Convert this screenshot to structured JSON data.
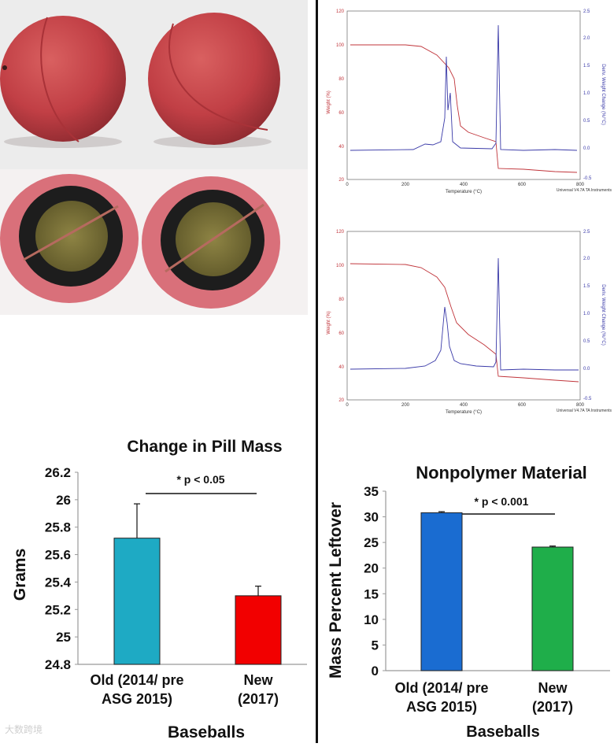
{
  "photo": {
    "caption_top": "Two red baseball pills (exterior view)",
    "caption_bottom": "Two halved baseball pills showing cork core and black rubber layer"
  },
  "tga_top": {
    "left_axis_label": "Weight (%)",
    "right_axis_label": "Deriv. Weight Change (%/°C)",
    "x_axis_label": "Temperature (°C)",
    "footer": "Universal V4.7A TA Instruments",
    "left_ticks": [
      "120",
      "100",
      "80",
      "60",
      "40",
      "20"
    ],
    "right_ticks": [
      "2.5",
      "2.0",
      "1.5",
      "1.0",
      "0.5",
      "0.0",
      "-0.5"
    ],
    "x_ticks": [
      "0",
      "200",
      "400",
      "600",
      "800"
    ]
  },
  "tga_bottom": {
    "left_axis_label": "Weight (%)",
    "right_axis_label": "Deriv. Weight Change (%/°C)",
    "x_axis_label": "Temperature (°C)",
    "footer": "Universal V4.7A TA Instruments",
    "left_ticks": [
      "120",
      "100",
      "80",
      "60",
      "40",
      "20"
    ],
    "right_ticks": [
      "2.5",
      "2.0",
      "1.5",
      "1.0",
      "0.5",
      "0.0",
      "-0.5"
    ],
    "x_ticks": [
      "0",
      "200",
      "400",
      "600",
      "800"
    ]
  },
  "chart_data": [
    {
      "type": "bar",
      "title": "Change in Pill Mass",
      "xlabel": "Baseballs",
      "ylabel": "Grams",
      "categories": [
        "Old (2014/ pre ASG 2015)",
        "New (2017)"
      ],
      "category_lines": [
        [
          "Old (2014/ pre",
          "ASG 2015)"
        ],
        [
          "New",
          "(2017)"
        ]
      ],
      "values": [
        25.72,
        25.3
      ],
      "errors": [
        0.25,
        0.07
      ],
      "colors": [
        "#1eaac4",
        "#f20000"
      ],
      "ylim": [
        24.8,
        26.2
      ],
      "yticks": [
        24.8,
        25,
        25.2,
        25.4,
        25.6,
        25.8,
        26,
        26.2
      ],
      "ytick_labels": [
        "24.8",
        "25",
        "25.2",
        "25.4",
        "25.6",
        "25.8",
        "26",
        "26.2"
      ],
      "annotation": "* p < 0.05"
    },
    {
      "type": "bar",
      "title": "Nonpolymer Material",
      "xlabel": "Baseballs",
      "ylabel": "Mass Percent Leftover",
      "categories": [
        "Old (2014/ pre ASG 2015)",
        "New (2017)"
      ],
      "category_lines": [
        [
          "Old (2014/ pre",
          "ASG 2015)"
        ],
        [
          "New",
          "(2017)"
        ]
      ],
      "values": [
        30.8,
        24.1
      ],
      "errors": [
        0.2,
        0.2
      ],
      "colors": [
        "#1a6cd1",
        "#1fae4a"
      ],
      "ylim": [
        0,
        35
      ],
      "yticks": [
        0,
        5,
        10,
        15,
        20,
        25,
        30,
        35
      ],
      "ytick_labels": [
        "0",
        "5",
        "10",
        "15",
        "20",
        "25",
        "30",
        "35"
      ],
      "annotation": "* p < 0.001"
    }
  ],
  "watermark": "大数跨境"
}
